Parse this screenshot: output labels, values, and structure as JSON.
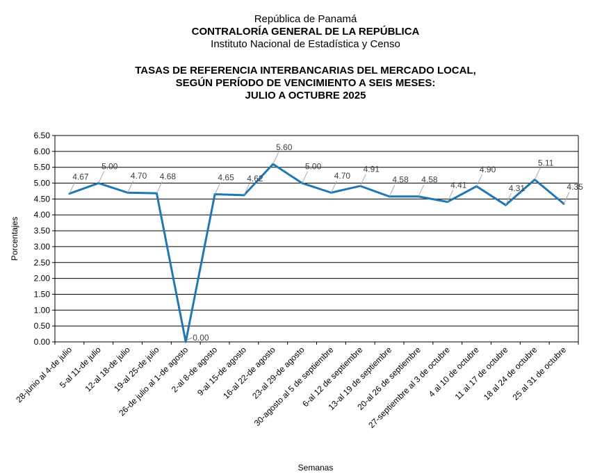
{
  "header": {
    "line1": "República de Panamá",
    "line2": "CONTRALORÍA GENERAL DE LA REPÚBLICA",
    "line3": "Instituto  Nacional de Estadística y Censo"
  },
  "chart_data": {
    "type": "line",
    "title": [
      "TASAS DE REFERENCIA INTERBANCARIAS DEL MERCADO LOCAL,",
      "SEGÚN PERÍODO DE VENCIMIENTO A SEIS MESES:",
      "JULIO A OCTUBRE 2025"
    ],
    "xlabel": "Semanas",
    "ylabel": "Porcentajes",
    "ylim": [
      0,
      6.5
    ],
    "yticks": [
      "0.00",
      "0.50",
      "1.00",
      "1.50",
      "2.00",
      "2.50",
      "3.00",
      "3.50",
      "4.00",
      "4.50",
      "5.00",
      "5.50",
      "6.00",
      "6.50"
    ],
    "grid": true,
    "color": "#1f77b4",
    "categories": [
      "28-junio al 4-de julio",
      "5-al 11-de julio",
      "12-al 18-de julio",
      "19-al 25-de julio",
      "26-de julio al 1-de agosto",
      "2-al 8-de agosto",
      "9-al 15-de agosto",
      "16-al 22-de agosto",
      "23-al 29-de agosto",
      "30-agosto al 5 de septiembre",
      "6-al 12 de septiembre",
      "13-al 19 de septiembre",
      "20-al 26 de septiembre",
      "27-septiembre al 3 de octubre",
      "4 al 10 de octubre",
      "11 al 17 de octubre",
      "18 al 24 de octubre",
      "25 al 31 de octubre"
    ],
    "values": [
      4.67,
      5.0,
      4.7,
      4.68,
      0.0,
      4.65,
      4.62,
      5.6,
      5.0,
      4.7,
      4.91,
      4.58,
      4.58,
      4.41,
      4.9,
      4.31,
      5.11,
      4.35
    ],
    "labels": [
      "4.67",
      "5.00",
      "4.70",
      "4.68",
      "0.00",
      "4.65",
      "4.62",
      "5.60",
      "5.00",
      "4.70",
      "4.91",
      "4.58",
      "4.58",
      "4.41",
      "4.90",
      "4.31",
      "5.11",
      "4.35"
    ]
  }
}
